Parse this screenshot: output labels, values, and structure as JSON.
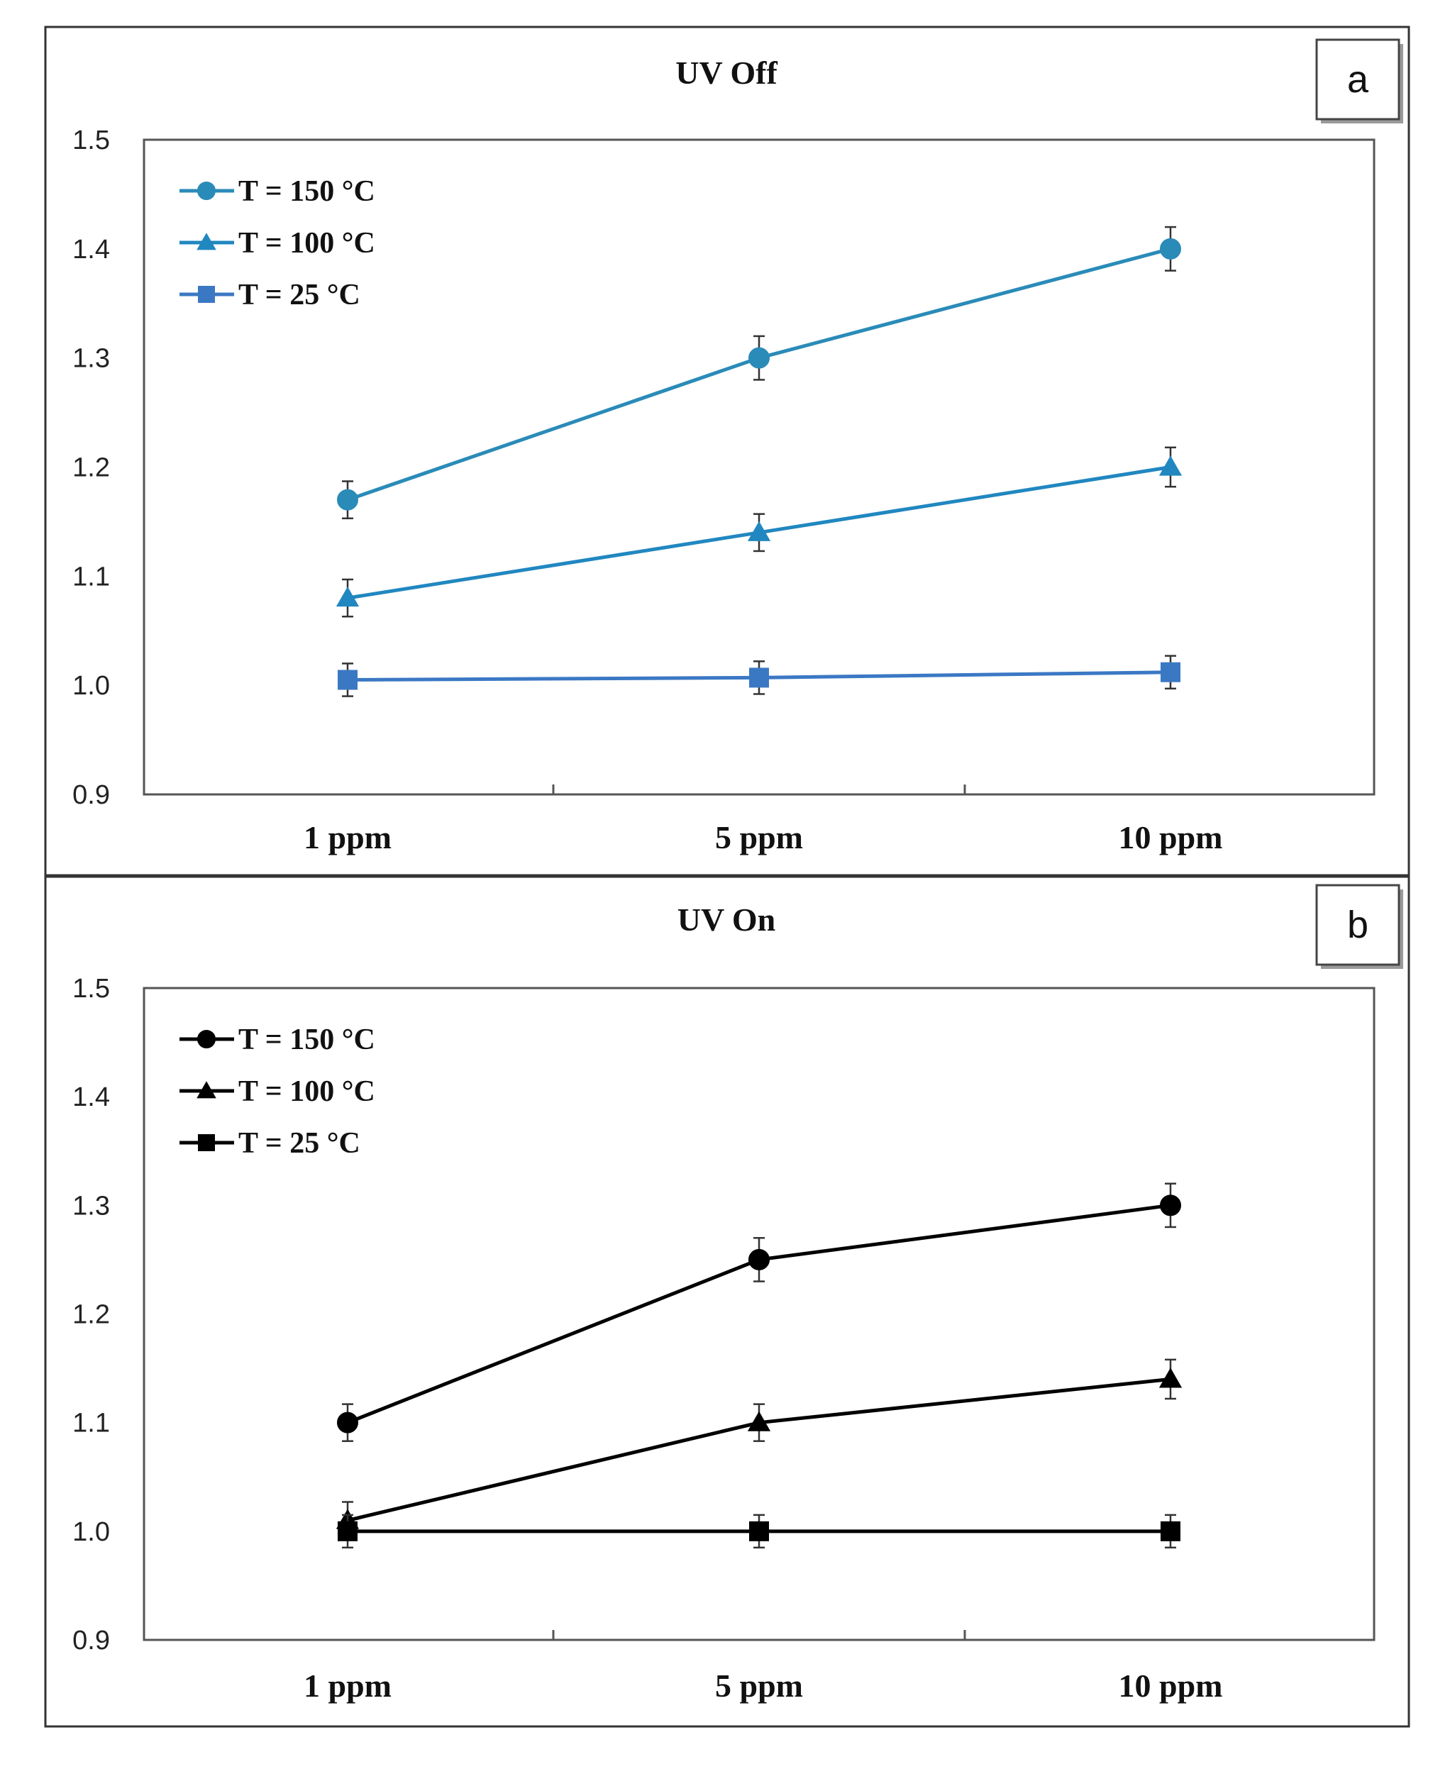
{
  "chart_data": [
    {
      "type": "line",
      "title": "UV Off",
      "panel_label": "a",
      "categories": [
        "1 ppm",
        "5 ppm",
        "10 ppm"
      ],
      "ylim": [
        0.9,
        1.5
      ],
      "yticks": [
        "0.9",
        "1.0",
        "1.1",
        "1.2",
        "1.3",
        "1.4",
        "1.5"
      ],
      "grid": false,
      "legend_position": "top-left",
      "series": [
        {
          "name": "T = 150 °C",
          "marker": "circle",
          "color": "#2a8bb8",
          "values": [
            1.17,
            1.3,
            1.4
          ],
          "error": [
            0.017,
            0.02,
            0.02
          ]
        },
        {
          "name": "T = 100 °C",
          "marker": "triangle",
          "color": "#2187c0",
          "values": [
            1.08,
            1.14,
            1.2
          ],
          "error": [
            0.017,
            0.017,
            0.018
          ]
        },
        {
          "name": "T = 25 °C",
          "marker": "square",
          "color": "#3b78c4",
          "values": [
            1.005,
            1.007,
            1.012
          ],
          "error": [
            0.015,
            0.015,
            0.015
          ]
        }
      ]
    },
    {
      "type": "line",
      "title": "UV On",
      "panel_label": "b",
      "categories": [
        "1 ppm",
        "5 ppm",
        "10 ppm"
      ],
      "ylim": [
        0.9,
        1.5
      ],
      "yticks": [
        "0.9",
        "1.0",
        "1.1",
        "1.2",
        "1.3",
        "1.4",
        "1.5"
      ],
      "grid": false,
      "legend_position": "top-left",
      "series": [
        {
          "name": "T = 150 °C",
          "marker": "circle",
          "color": "#000000",
          "values": [
            1.1,
            1.25,
            1.3
          ],
          "error": [
            0.017,
            0.02,
            0.02
          ]
        },
        {
          "name": "T = 100 °C",
          "marker": "triangle",
          "color": "#000000",
          "values": [
            1.01,
            1.1,
            1.14
          ],
          "error": [
            0.017,
            0.017,
            0.018
          ]
        },
        {
          "name": "T = 25 °C",
          "marker": "square",
          "color": "#000000",
          "values": [
            1.0,
            1.0,
            1.0
          ],
          "error": [
            0.015,
            0.015,
            0.015
          ]
        }
      ]
    }
  ]
}
